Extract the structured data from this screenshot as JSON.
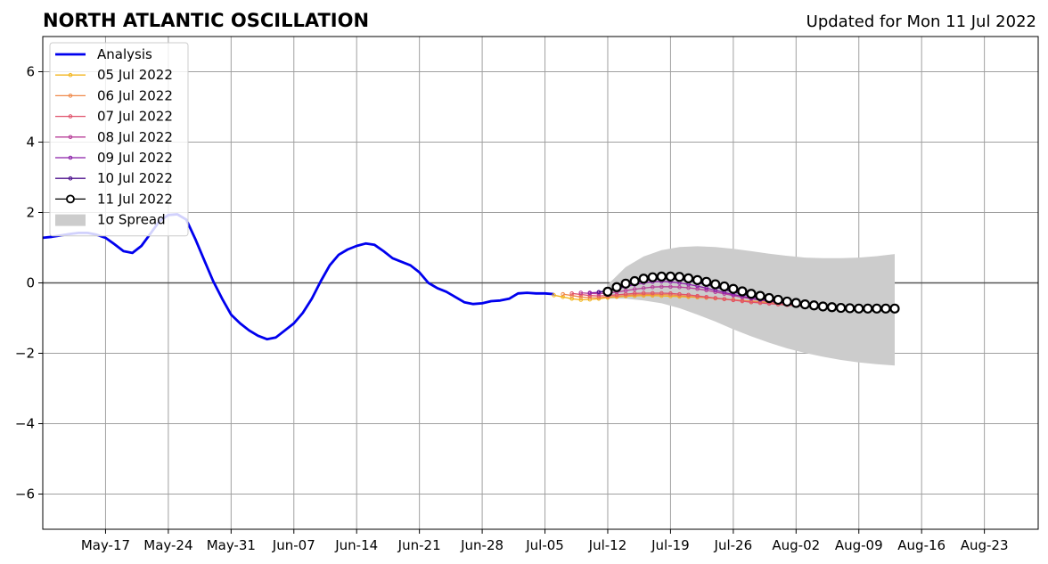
{
  "title": "NORTH ATLANTIC OSCILLATION",
  "updated_label": "Updated for Mon 11 Jul 2022",
  "chart_data": {
    "type": "line",
    "x_axis": {
      "type": "date",
      "range": [
        "2022-05-10",
        "2022-08-29"
      ],
      "tick_labels": [
        "May-17",
        "May-24",
        "May-31",
        "Jun-07",
        "Jun-14",
        "Jun-21",
        "Jun-28",
        "Jul-05",
        "Jul-12",
        "Jul-19",
        "Jul-26",
        "Aug-02",
        "Aug-09",
        "Aug-16",
        "Aug-23"
      ],
      "tick_dates": [
        "2022-05-17",
        "2022-05-24",
        "2022-05-31",
        "2022-06-07",
        "2022-06-14",
        "2022-06-21",
        "2022-06-28",
        "2022-07-05",
        "2022-07-12",
        "2022-07-19",
        "2022-07-26",
        "2022-08-02",
        "2022-08-09",
        "2022-08-16",
        "2022-08-23"
      ]
    },
    "y_axis": {
      "range": [
        -7,
        7
      ],
      "ticks": [
        -6,
        -4,
        -2,
        0,
        2,
        4,
        6
      ],
      "tick_labels": [
        "−6",
        "−4",
        "−2",
        "0",
        "2",
        "4",
        "6"
      ]
    },
    "grid": true,
    "zero_line": true,
    "legend": {
      "position": "top-left",
      "entries": [
        "Analysis",
        "05 Jul 2022",
        "06 Jul 2022",
        "07 Jul 2022",
        "08 Jul 2022",
        "09 Jul 2022",
        "10 Jul 2022",
        "11 Jul 2022",
        "1σ Spread"
      ]
    },
    "series": [
      {
        "name": "Analysis",
        "color": "#0000ee",
        "style": "thick-line",
        "x": [
          "2022-05-10",
          "2022-05-11",
          "2022-05-12",
          "2022-05-13",
          "2022-05-14",
          "2022-05-15",
          "2022-05-16",
          "2022-05-17",
          "2022-05-18",
          "2022-05-19",
          "2022-05-20",
          "2022-05-21",
          "2022-05-22",
          "2022-05-23",
          "2022-05-24",
          "2022-05-25",
          "2022-05-26",
          "2022-05-27",
          "2022-05-28",
          "2022-05-29",
          "2022-05-30",
          "2022-05-31",
          "2022-06-01",
          "2022-06-02",
          "2022-06-03",
          "2022-06-04",
          "2022-06-05",
          "2022-06-06",
          "2022-06-07",
          "2022-06-08",
          "2022-06-09",
          "2022-06-10",
          "2022-06-11",
          "2022-06-12",
          "2022-06-13",
          "2022-06-14",
          "2022-06-15",
          "2022-06-16",
          "2022-06-17",
          "2022-06-18",
          "2022-06-19",
          "2022-06-20",
          "2022-06-21",
          "2022-06-22",
          "2022-06-23",
          "2022-06-24",
          "2022-06-25",
          "2022-06-26",
          "2022-06-27",
          "2022-06-28",
          "2022-06-29",
          "2022-06-30",
          "2022-07-01",
          "2022-07-02",
          "2022-07-03",
          "2022-07-04",
          "2022-07-05",
          "2022-07-06"
        ],
        "values": [
          1.28,
          1.31,
          1.35,
          1.39,
          1.42,
          1.42,
          1.37,
          1.28,
          1.1,
          0.9,
          0.85,
          1.05,
          1.4,
          1.75,
          1.93,
          1.95,
          1.8,
          1.25,
          0.65,
          0.05,
          -0.45,
          -0.9,
          -1.15,
          -1.35,
          -1.5,
          -1.6,
          -1.55,
          -1.35,
          -1.15,
          -0.85,
          -0.45,
          0.05,
          0.5,
          0.8,
          0.95,
          1.05,
          1.12,
          1.08,
          0.9,
          0.7,
          0.6,
          0.5,
          0.3,
          0.0,
          -0.15,
          -0.25,
          -0.4,
          -0.55,
          -0.6,
          -0.58,
          -0.52,
          -0.5,
          -0.45,
          -0.3,
          -0.28,
          -0.3,
          -0.3,
          -0.32
        ]
      },
      {
        "name": "05 Jul 2022",
        "color": "#f2b51d",
        "style": "small-dots",
        "x": [
          "2022-07-06",
          "2022-07-07",
          "2022-07-08",
          "2022-07-09",
          "2022-07-10",
          "2022-07-11",
          "2022-07-12",
          "2022-07-13",
          "2022-07-14",
          "2022-07-15",
          "2022-07-16",
          "2022-07-17",
          "2022-07-18",
          "2022-07-19",
          "2022-07-20",
          "2022-07-21",
          "2022-07-22",
          "2022-07-23",
          "2022-07-24",
          "2022-07-25",
          "2022-07-26",
          "2022-07-27",
          "2022-07-28",
          "2022-07-29",
          "2022-07-30",
          "2022-07-31",
          "2022-08-01"
        ],
        "values": [
          -0.35,
          -0.4,
          -0.45,
          -0.48,
          -0.47,
          -0.45,
          -0.42,
          -0.4,
          -0.38,
          -0.37,
          -0.36,
          -0.36,
          -0.37,
          -0.38,
          -0.39,
          -0.4,
          -0.41,
          -0.42,
          -0.44,
          -0.46,
          -0.48,
          -0.5,
          -0.52,
          -0.54,
          -0.55,
          -0.57,
          -0.59
        ]
      },
      {
        "name": "06 Jul 2022",
        "color": "#f0894a",
        "style": "small-dots",
        "x": [
          "2022-07-07",
          "2022-07-08",
          "2022-07-09",
          "2022-07-10",
          "2022-07-11",
          "2022-07-12",
          "2022-07-13",
          "2022-07-14",
          "2022-07-15",
          "2022-07-16",
          "2022-07-17",
          "2022-07-18",
          "2022-07-19",
          "2022-07-20",
          "2022-07-21",
          "2022-07-22",
          "2022-07-23",
          "2022-07-24",
          "2022-07-25",
          "2022-07-26",
          "2022-07-27",
          "2022-07-28",
          "2022-07-29",
          "2022-07-30",
          "2022-07-31",
          "2022-08-01",
          "2022-08-02",
          "2022-08-03",
          "2022-08-04",
          "2022-08-05",
          "2022-08-06",
          "2022-08-07",
          "2022-08-08",
          "2022-08-09"
        ],
        "values": [
          -0.32,
          -0.36,
          -0.4,
          -0.42,
          -0.42,
          -0.4,
          -0.38,
          -0.36,
          -0.34,
          -0.33,
          -0.33,
          -0.33,
          -0.34,
          -0.36,
          -0.38,
          -0.4,
          -0.42,
          -0.44,
          -0.46,
          -0.48,
          -0.5,
          -0.52,
          -0.54,
          -0.56,
          -0.58,
          -0.6,
          -0.62,
          -0.63,
          -0.64,
          -0.65,
          -0.66,
          -0.67,
          -0.68,
          -0.69
        ]
      },
      {
        "name": "07 Jul 2022",
        "color": "#e0516a",
        "style": "small-dots",
        "x": [
          "2022-07-08",
          "2022-07-09",
          "2022-07-10",
          "2022-07-11",
          "2022-07-12",
          "2022-07-13",
          "2022-07-14",
          "2022-07-15",
          "2022-07-16",
          "2022-07-17",
          "2022-07-18",
          "2022-07-19",
          "2022-07-20",
          "2022-07-21",
          "2022-07-22",
          "2022-07-23",
          "2022-07-24",
          "2022-07-25",
          "2022-07-26",
          "2022-07-27",
          "2022-07-28",
          "2022-07-29",
          "2022-07-30",
          "2022-07-31",
          "2022-08-01",
          "2022-08-02",
          "2022-08-03",
          "2022-08-04",
          "2022-08-05",
          "2022-08-06",
          "2022-08-07",
          "2022-08-08",
          "2022-08-09",
          "2022-08-10"
        ],
        "values": [
          -0.3,
          -0.33,
          -0.36,
          -0.37,
          -0.36,
          -0.34,
          -0.32,
          -0.3,
          -0.29,
          -0.29,
          -0.29,
          -0.3,
          -0.32,
          -0.34,
          -0.37,
          -0.4,
          -0.43,
          -0.46,
          -0.49,
          -0.52,
          -0.55,
          -0.57,
          -0.59,
          -0.61,
          -0.63,
          -0.65,
          -0.66,
          -0.67,
          -0.68,
          -0.69,
          -0.7,
          -0.7,
          -0.7,
          -0.71
        ]
      },
      {
        "name": "08 Jul 2022",
        "color": "#b8409a",
        "style": "small-dots",
        "x": [
          "2022-07-09",
          "2022-07-10",
          "2022-07-11",
          "2022-07-12",
          "2022-07-13",
          "2022-07-14",
          "2022-07-15",
          "2022-07-16",
          "2022-07-17",
          "2022-07-18",
          "2022-07-19",
          "2022-07-20",
          "2022-07-21",
          "2022-07-22",
          "2022-07-23",
          "2022-07-24",
          "2022-07-25",
          "2022-07-26",
          "2022-07-27",
          "2022-07-28",
          "2022-07-29",
          "2022-07-30",
          "2022-07-31",
          "2022-08-01",
          "2022-08-02",
          "2022-08-03",
          "2022-08-04",
          "2022-08-05",
          "2022-08-06",
          "2022-08-07",
          "2022-08-08",
          "2022-08-09",
          "2022-08-10",
          "2022-08-11"
        ],
        "values": [
          -0.28,
          -0.3,
          -0.31,
          -0.29,
          -0.26,
          -0.22,
          -0.18,
          -0.15,
          -0.12,
          -0.11,
          -0.11,
          -0.12,
          -0.14,
          -0.17,
          -0.21,
          -0.26,
          -0.31,
          -0.36,
          -0.41,
          -0.45,
          -0.49,
          -0.53,
          -0.56,
          -0.59,
          -0.62,
          -0.64,
          -0.66,
          -0.67,
          -0.68,
          -0.69,
          -0.7,
          -0.71,
          -0.72,
          -0.72
        ]
      },
      {
        "name": "09 Jul 2022",
        "color": "#8a1fa8",
        "style": "small-dots",
        "x": [
          "2022-07-10",
          "2022-07-11",
          "2022-07-12",
          "2022-07-13",
          "2022-07-14",
          "2022-07-15",
          "2022-07-16",
          "2022-07-17",
          "2022-07-18",
          "2022-07-19",
          "2022-07-20",
          "2022-07-21",
          "2022-07-22",
          "2022-07-23",
          "2022-07-24",
          "2022-07-25",
          "2022-07-26",
          "2022-07-27",
          "2022-07-28",
          "2022-07-29",
          "2022-07-30",
          "2022-07-31",
          "2022-08-01",
          "2022-08-02",
          "2022-08-03",
          "2022-08-04",
          "2022-08-05",
          "2022-08-06",
          "2022-08-07",
          "2022-08-08",
          "2022-08-09",
          "2022-08-10",
          "2022-08-11",
          "2022-08-12"
        ],
        "values": [
          -0.28,
          -0.27,
          -0.23,
          -0.17,
          -0.11,
          -0.05,
          0.0,
          0.03,
          0.04,
          0.03,
          0.0,
          -0.04,
          -0.09,
          -0.15,
          -0.21,
          -0.27,
          -0.33,
          -0.38,
          -0.43,
          -0.47,
          -0.51,
          -0.55,
          -0.58,
          -0.61,
          -0.63,
          -0.65,
          -0.67,
          -0.68,
          -0.69,
          -0.7,
          -0.71,
          -0.72,
          -0.72,
          -0.73
        ]
      },
      {
        "name": "10 Jul 2022",
        "color": "#4b0f8c",
        "style": "small-dots",
        "x": [
          "2022-07-11",
          "2022-07-12",
          "2022-07-13",
          "2022-07-14",
          "2022-07-15",
          "2022-07-16",
          "2022-07-17",
          "2022-07-18",
          "2022-07-19",
          "2022-07-20",
          "2022-07-21",
          "2022-07-22",
          "2022-07-23",
          "2022-07-24",
          "2022-07-25",
          "2022-07-26",
          "2022-07-27",
          "2022-07-28",
          "2022-07-29",
          "2022-07-30",
          "2022-07-31",
          "2022-08-01",
          "2022-08-02",
          "2022-08-03",
          "2022-08-04",
          "2022-08-05",
          "2022-08-06",
          "2022-08-07",
          "2022-08-08",
          "2022-08-09",
          "2022-08-10",
          "2022-08-11",
          "2022-08-12",
          "2022-08-13"
        ],
        "values": [
          -0.26,
          -0.22,
          -0.15,
          -0.07,
          0.0,
          0.06,
          0.1,
          0.12,
          0.12,
          0.1,
          0.06,
          0.01,
          -0.05,
          -0.12,
          -0.19,
          -0.26,
          -0.32,
          -0.38,
          -0.43,
          -0.48,
          -0.52,
          -0.56,
          -0.59,
          -0.62,
          -0.64,
          -0.66,
          -0.68,
          -0.69,
          -0.7,
          -0.71,
          -0.72,
          -0.72,
          -0.73,
          -0.73
        ]
      },
      {
        "name": "11 Jul 2022",
        "color": "#000000",
        "style": "open-circles",
        "x": [
          "2022-07-12",
          "2022-07-13",
          "2022-07-14",
          "2022-07-15",
          "2022-07-16",
          "2022-07-17",
          "2022-07-18",
          "2022-07-19",
          "2022-07-20",
          "2022-07-21",
          "2022-07-22",
          "2022-07-23",
          "2022-07-24",
          "2022-07-25",
          "2022-07-26",
          "2022-07-27",
          "2022-07-28",
          "2022-07-29",
          "2022-07-30",
          "2022-07-31",
          "2022-08-01",
          "2022-08-02",
          "2022-08-03",
          "2022-08-04",
          "2022-08-05",
          "2022-08-06",
          "2022-08-07",
          "2022-08-08",
          "2022-08-09",
          "2022-08-10",
          "2022-08-11",
          "2022-08-12",
          "2022-08-13"
        ],
        "values": [
          -0.25,
          -0.12,
          -0.02,
          0.05,
          0.12,
          0.16,
          0.18,
          0.18,
          0.17,
          0.13,
          0.08,
          0.03,
          -0.04,
          -0.1,
          -0.17,
          -0.24,
          -0.31,
          -0.37,
          -0.43,
          -0.48,
          -0.53,
          -0.57,
          -0.61,
          -0.64,
          -0.67,
          -0.69,
          -0.71,
          -0.72,
          -0.73,
          -0.73,
          -0.73,
          -0.73,
          -0.73
        ]
      }
    ],
    "spread": {
      "name": "1σ Spread",
      "color": "#cccccc",
      "x": [
        "2022-07-12",
        "2022-07-14",
        "2022-07-16",
        "2022-07-18",
        "2022-07-20",
        "2022-07-22",
        "2022-07-24",
        "2022-07-26",
        "2022-07-28",
        "2022-07-30",
        "2022-08-01",
        "2022-08-03",
        "2022-08-05",
        "2022-08-07",
        "2022-08-09",
        "2022-08-11",
        "2022-08-13"
      ],
      "upper": [
        -0.05,
        0.45,
        0.75,
        0.93,
        1.02,
        1.04,
        1.02,
        0.97,
        0.9,
        0.83,
        0.77,
        0.72,
        0.7,
        0.7,
        0.72,
        0.76,
        0.82
      ],
      "lower": [
        -0.45,
        -0.45,
        -0.5,
        -0.58,
        -0.72,
        -0.9,
        -1.1,
        -1.32,
        -1.52,
        -1.7,
        -1.86,
        -1.99,
        -2.1,
        -2.19,
        -2.26,
        -2.31,
        -2.35
      ]
    }
  }
}
